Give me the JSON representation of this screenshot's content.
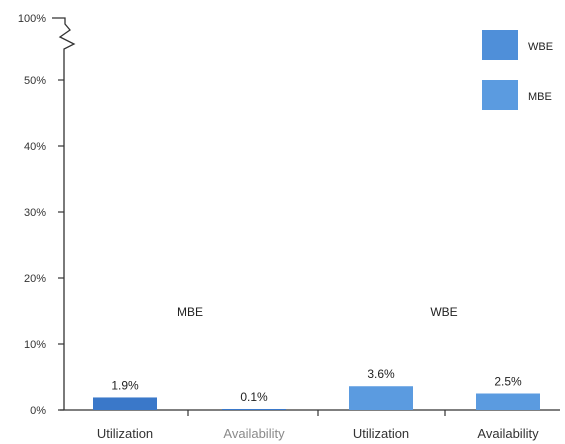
{
  "chart_data": {
    "type": "bar",
    "y_ticks": [
      "0%",
      "10%",
      "20%",
      "30%",
      "40%",
      "50%",
      "100%"
    ],
    "y_tick_values": [
      0,
      10,
      20,
      30,
      40,
      50,
      100
    ],
    "ylim": [
      0,
      100
    ],
    "axis_break": true,
    "grid": false,
    "legend": {
      "position": "top-right",
      "entries": [
        {
          "name": "WBE",
          "color": "#4f8fd9"
        },
        {
          "name": "MBE",
          "color": "#5b9be0"
        }
      ]
    },
    "groups": [
      {
        "label": "MBE",
        "categories": [
          "Utilization",
          "Availability"
        ],
        "values": [
          1.9,
          0.1
        ],
        "value_labels": [
          "1.9%",
          "0.1%"
        ],
        "color": "#3a78c9"
      },
      {
        "label": "WBE",
        "categories": [
          "Utilization",
          "Availability"
        ],
        "values": [
          3.6,
          2.5
        ],
        "value_labels": [
          "3.6%",
          "2.5%"
        ],
        "color": "#5b9be0"
      }
    ]
  }
}
